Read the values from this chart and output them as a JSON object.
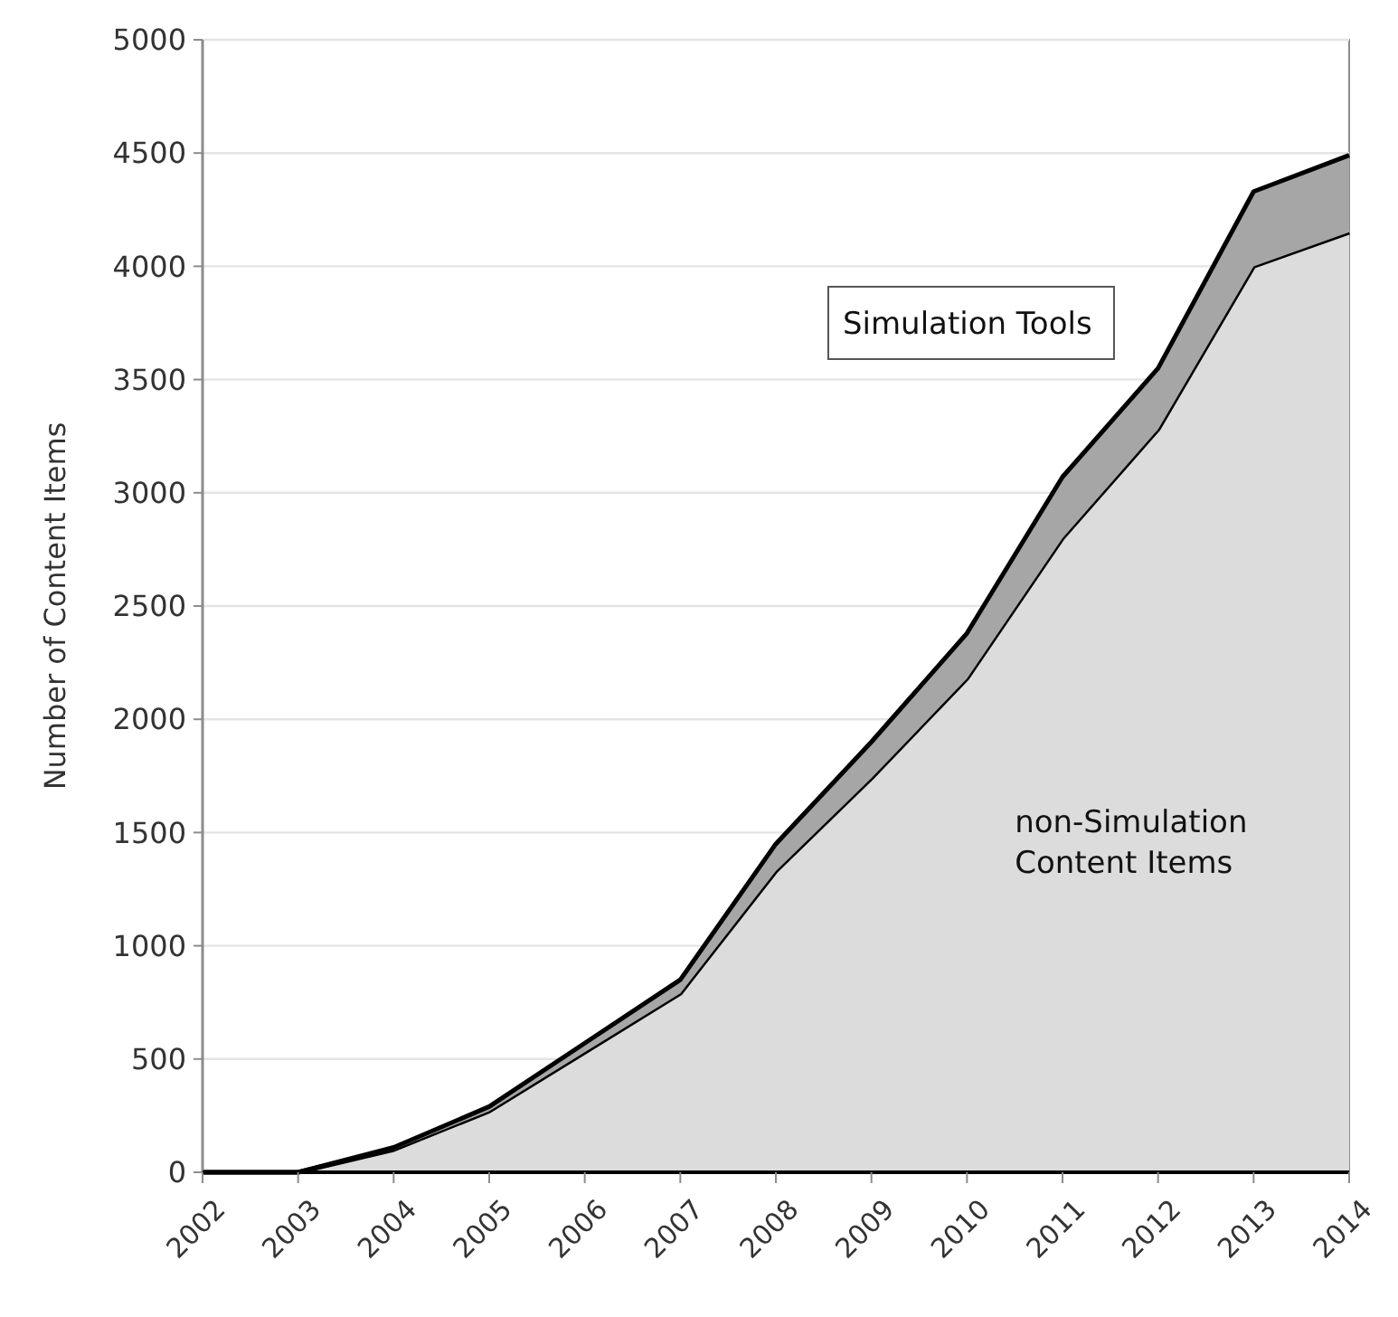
{
  "chart_data": {
    "type": "area",
    "stacked": true,
    "ylabel": "Number of Content Items",
    "x": [
      2002,
      2003,
      2004,
      2005,
      2006,
      2007,
      2008,
      2009,
      2010,
      2011,
      2012,
      2013,
      2014
    ],
    "xlim": [
      2002,
      2014
    ],
    "xticks": [
      2002,
      2003,
      2004,
      2005,
      2006,
      2007,
      2008,
      2009,
      2010,
      2011,
      2012,
      2013,
      2014
    ],
    "ylim": [
      0,
      5000
    ],
    "yticks": [
      0,
      500,
      1000,
      1500,
      2000,
      2500,
      3000,
      3500,
      4000,
      4500,
      5000
    ],
    "grid": "y",
    "series": [
      {
        "name": "non-Simulation Content Items",
        "color": "#dcdcdc",
        "values": [
          0,
          0,
          100,
          270,
          530,
          790,
          1330,
          1740,
          2180,
          2800,
          3280,
          4000,
          4150
        ]
      },
      {
        "name": "Simulation Tools",
        "color": "#a6a6a6",
        "values": [
          0,
          0,
          10,
          20,
          40,
          60,
          120,
          160,
          200,
          270,
          270,
          330,
          340
        ]
      }
    ]
  }
}
